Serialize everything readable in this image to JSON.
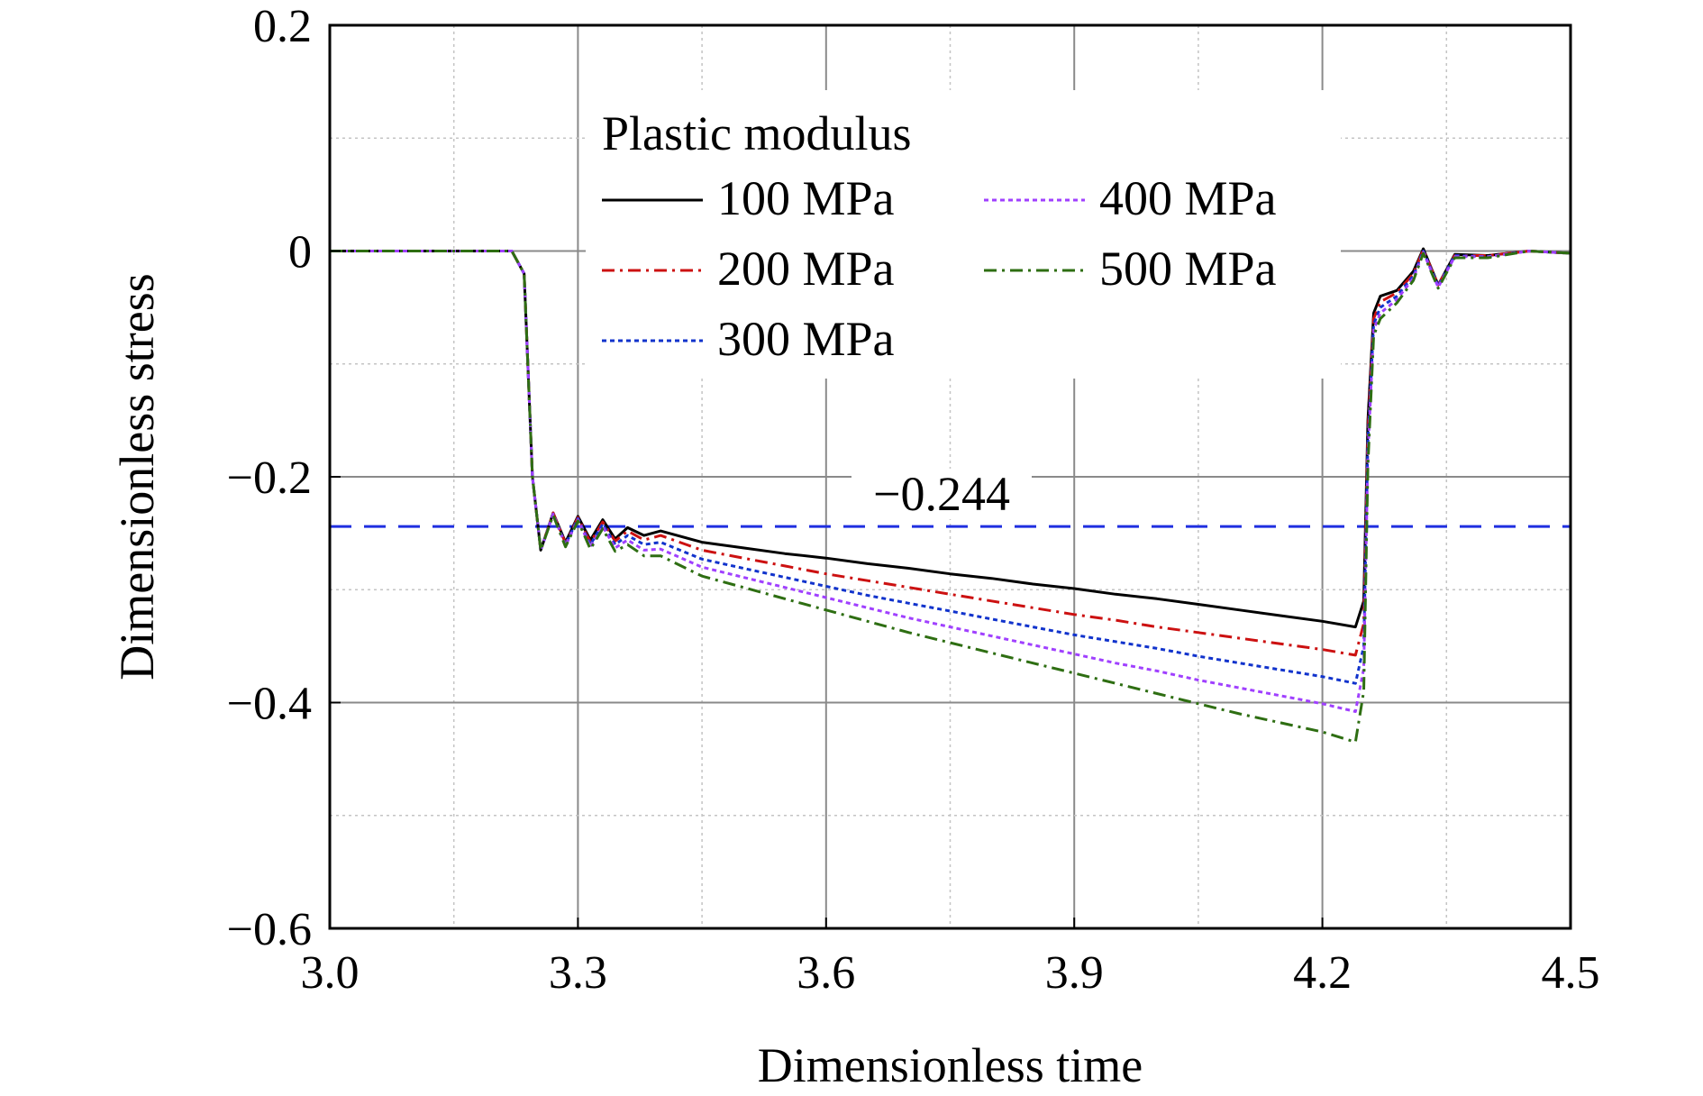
{
  "chart_data": {
    "type": "line",
    "xlabel": "Dimensionless time",
    "ylabel": "Dimensionless stress",
    "xlim": [
      3.0,
      4.5
    ],
    "ylim": [
      -0.6,
      0.2
    ],
    "xticks": [
      3.0,
      3.3,
      3.6,
      3.9,
      4.2,
      4.5
    ],
    "xtick_labels": [
      "3.0",
      "3.3",
      "3.6",
      "3.9",
      "4.2",
      "4.5"
    ],
    "yticks": [
      0.2,
      0,
      -0.2,
      -0.4,
      -0.6
    ],
    "ytick_labels": [
      "0.2",
      "0",
      "−0.2",
      "−0.4",
      "−0.6"
    ],
    "grid": true,
    "legend_title": "Plastic modulus",
    "legend_position": "top-center",
    "reference_line": {
      "y": -0.244,
      "label": "−0.244",
      "color": "#1f2fe0"
    },
    "series": [
      {
        "name": "100 MPa",
        "color": "#000000",
        "dash": "solid",
        "x": [
          3.0,
          3.22,
          3.235,
          3.245,
          3.255,
          3.27,
          3.285,
          3.3,
          3.315,
          3.33,
          3.345,
          3.36,
          3.38,
          3.4,
          3.45,
          3.5,
          3.55,
          3.6,
          3.65,
          3.7,
          3.75,
          3.8,
          3.85,
          3.9,
          3.95,
          4.0,
          4.05,
          4.1,
          4.15,
          4.2,
          4.24,
          4.25,
          4.255,
          4.262,
          4.27,
          4.29,
          4.31,
          4.322,
          4.34,
          4.36,
          4.4,
          4.45,
          4.5
        ],
        "y": [
          0,
          0,
          -0.02,
          -0.2,
          -0.265,
          -0.232,
          -0.258,
          -0.235,
          -0.256,
          -0.238,
          -0.255,
          -0.245,
          -0.252,
          -0.248,
          -0.258,
          -0.263,
          -0.268,
          -0.272,
          -0.277,
          -0.281,
          -0.286,
          -0.29,
          -0.295,
          -0.299,
          -0.304,
          -0.308,
          -0.313,
          -0.318,
          -0.323,
          -0.328,
          -0.333,
          -0.31,
          -0.15,
          -0.055,
          -0.04,
          -0.035,
          -0.018,
          0.002,
          -0.03,
          -0.003,
          -0.004,
          0.0,
          -0.002
        ]
      },
      {
        "name": "200 MPa",
        "color": "#cc1111",
        "dash": "dashdot",
        "x": [
          3.0,
          3.22,
          3.235,
          3.245,
          3.255,
          3.27,
          3.285,
          3.3,
          3.315,
          3.33,
          3.345,
          3.36,
          3.38,
          3.4,
          3.45,
          3.5,
          3.55,
          3.6,
          3.65,
          3.7,
          3.75,
          3.8,
          3.85,
          3.9,
          3.95,
          4.0,
          4.05,
          4.1,
          4.15,
          4.2,
          4.24,
          4.25,
          4.255,
          4.262,
          4.27,
          4.29,
          4.31,
          4.322,
          4.34,
          4.36,
          4.4,
          4.45,
          4.5
        ],
        "y": [
          0,
          0,
          -0.02,
          -0.2,
          -0.265,
          -0.232,
          -0.259,
          -0.236,
          -0.258,
          -0.24,
          -0.257,
          -0.248,
          -0.256,
          -0.252,
          -0.265,
          -0.272,
          -0.279,
          -0.286,
          -0.292,
          -0.298,
          -0.304,
          -0.31,
          -0.316,
          -0.322,
          -0.327,
          -0.333,
          -0.338,
          -0.343,
          -0.348,
          -0.353,
          -0.358,
          -0.33,
          -0.16,
          -0.06,
          -0.045,
          -0.037,
          -0.02,
          0.001,
          -0.03,
          -0.004,
          -0.004,
          0.0,
          -0.002
        ]
      },
      {
        "name": "300 MPa",
        "color": "#1133cc",
        "dash": "dotted",
        "x": [
          3.0,
          3.22,
          3.235,
          3.245,
          3.255,
          3.27,
          3.285,
          3.3,
          3.315,
          3.33,
          3.345,
          3.36,
          3.38,
          3.4,
          3.45,
          3.5,
          3.55,
          3.6,
          3.65,
          3.7,
          3.75,
          3.8,
          3.85,
          3.9,
          3.95,
          4.0,
          4.05,
          4.1,
          4.15,
          4.2,
          4.24,
          4.25,
          4.255,
          4.262,
          4.27,
          4.29,
          4.31,
          4.322,
          4.34,
          4.36,
          4.4,
          4.45,
          4.5
        ],
        "y": [
          0,
          0,
          -0.02,
          -0.2,
          -0.265,
          -0.233,
          -0.26,
          -0.237,
          -0.26,
          -0.242,
          -0.26,
          -0.252,
          -0.26,
          -0.258,
          -0.273,
          -0.281,
          -0.289,
          -0.297,
          -0.305,
          -0.312,
          -0.319,
          -0.326,
          -0.333,
          -0.34,
          -0.346,
          -0.352,
          -0.359,
          -0.365,
          -0.371,
          -0.377,
          -0.383,
          -0.35,
          -0.17,
          -0.065,
          -0.05,
          -0.04,
          -0.022,
          0.0,
          -0.031,
          -0.004,
          -0.005,
          0.0,
          -0.002
        ]
      },
      {
        "name": "400 MPa",
        "color": "#a040ff",
        "dash": "dotted",
        "x": [
          3.0,
          3.22,
          3.235,
          3.245,
          3.255,
          3.27,
          3.285,
          3.3,
          3.315,
          3.33,
          3.345,
          3.36,
          3.38,
          3.4,
          3.45,
          3.5,
          3.55,
          3.6,
          3.65,
          3.7,
          3.75,
          3.8,
          3.85,
          3.9,
          3.95,
          4.0,
          4.05,
          4.1,
          4.15,
          4.2,
          4.24,
          4.25,
          4.255,
          4.262,
          4.27,
          4.29,
          4.31,
          4.322,
          4.34,
          4.36,
          4.4,
          4.45,
          4.5
        ],
        "y": [
          0,
          0,
          -0.02,
          -0.2,
          -0.265,
          -0.233,
          -0.261,
          -0.238,
          -0.262,
          -0.244,
          -0.263,
          -0.256,
          -0.265,
          -0.264,
          -0.28,
          -0.289,
          -0.298,
          -0.307,
          -0.316,
          -0.325,
          -0.333,
          -0.341,
          -0.349,
          -0.357,
          -0.365,
          -0.372,
          -0.38,
          -0.387,
          -0.394,
          -0.401,
          -0.408,
          -0.37,
          -0.18,
          -0.07,
          -0.055,
          -0.043,
          -0.024,
          -0.001,
          -0.032,
          -0.005,
          -0.005,
          0.0,
          -0.002
        ]
      },
      {
        "name": "500 MPa",
        "color": "#2e6e12",
        "dash": "dashdot",
        "x": [
          3.0,
          3.22,
          3.235,
          3.245,
          3.255,
          3.27,
          3.285,
          3.3,
          3.315,
          3.33,
          3.345,
          3.36,
          3.38,
          3.4,
          3.45,
          3.5,
          3.55,
          3.6,
          3.65,
          3.7,
          3.75,
          3.8,
          3.85,
          3.9,
          3.95,
          4.0,
          4.05,
          4.1,
          4.15,
          4.2,
          4.24,
          4.25,
          4.255,
          4.262,
          4.27,
          4.29,
          4.31,
          4.322,
          4.34,
          4.36,
          4.4,
          4.45,
          4.5
        ],
        "y": [
          0,
          0,
          -0.02,
          -0.2,
          -0.265,
          -0.234,
          -0.262,
          -0.239,
          -0.264,
          -0.246,
          -0.266,
          -0.26,
          -0.27,
          -0.27,
          -0.288,
          -0.298,
          -0.308,
          -0.318,
          -0.328,
          -0.338,
          -0.347,
          -0.356,
          -0.365,
          -0.374,
          -0.383,
          -0.392,
          -0.401,
          -0.41,
          -0.418,
          -0.426,
          -0.435,
          -0.39,
          -0.19,
          -0.075,
          -0.06,
          -0.046,
          -0.026,
          -0.002,
          -0.033,
          -0.006,
          -0.006,
          0.0,
          -0.002
        ]
      }
    ]
  }
}
